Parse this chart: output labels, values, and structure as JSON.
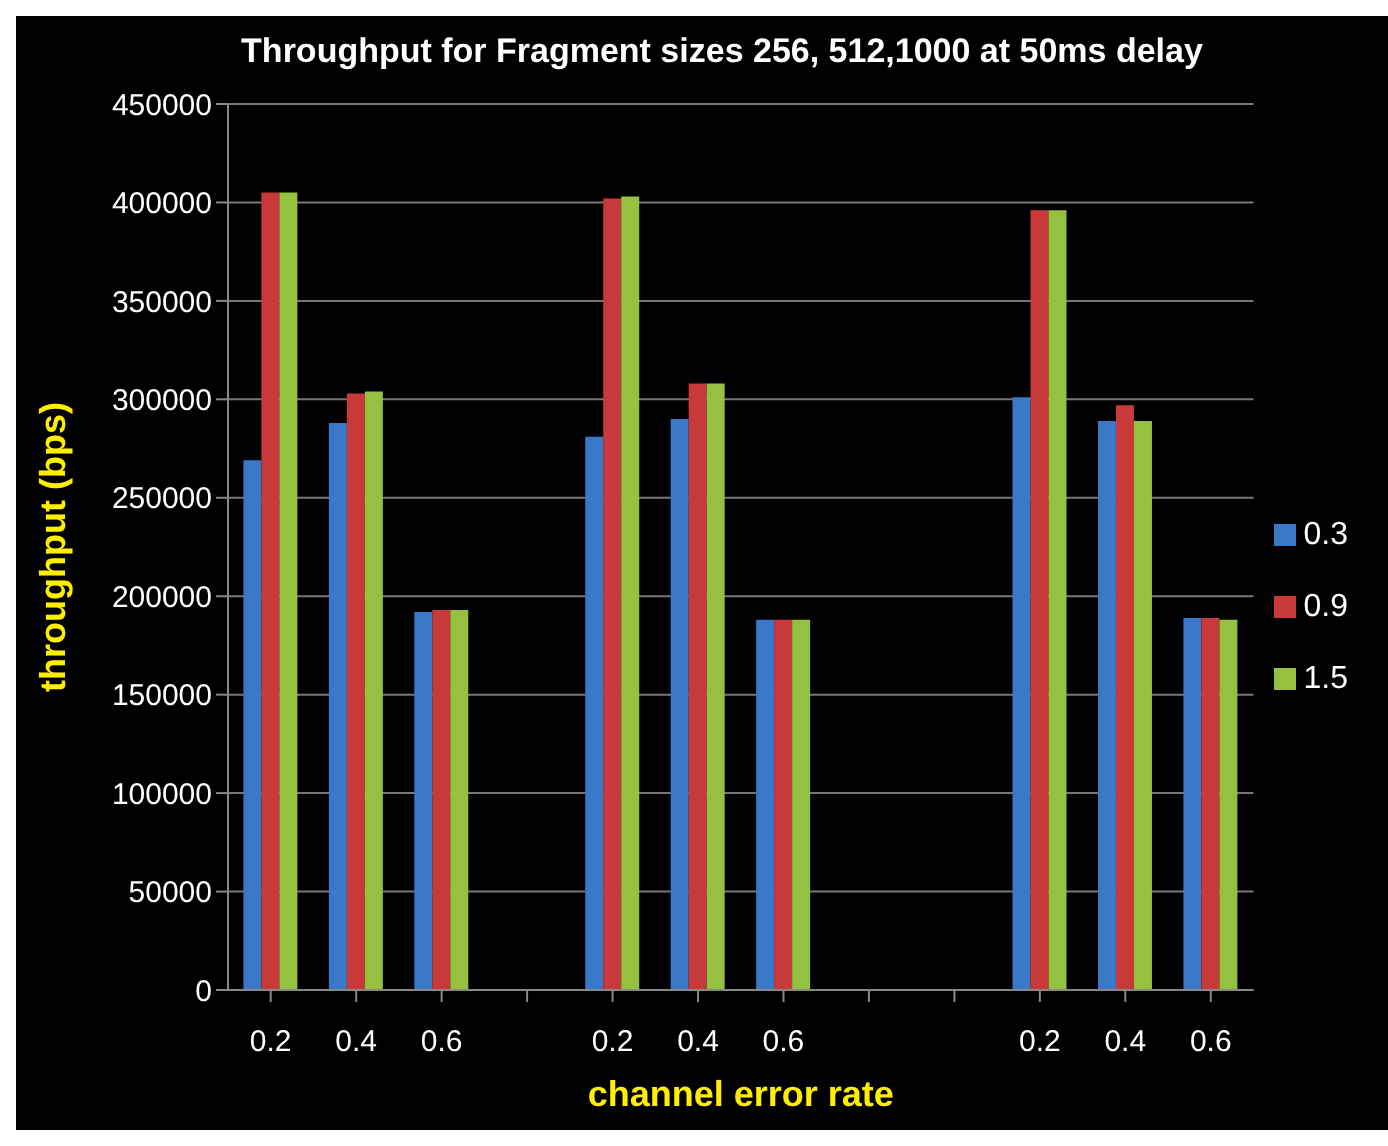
{
  "chart_data": {
    "type": "bar",
    "title": "Throughput  for Fragment sizes 256, 512,1000  at 50ms delay",
    "xlabel": "channel error rate",
    "ylabel": "throughput  (bps)",
    "categories": [
      "0.2",
      "0.4",
      "0.6",
      null,
      "0.2",
      "0.4",
      "0.6",
      null,
      null,
      "0.2",
      "0.4",
      "0.6"
    ],
    "series": [
      {
        "name": "0.3",
        "color": "#3a78c9",
        "values": [
          269000,
          288000,
          192000,
          null,
          281000,
          290000,
          188000,
          null,
          null,
          301000,
          289000,
          189000
        ]
      },
      {
        "name": "0.9",
        "color": "#c83a3a",
        "values": [
          405000,
          303000,
          193000,
          null,
          402000,
          308000,
          188000,
          null,
          null,
          396000,
          297000,
          189000
        ]
      },
      {
        "name": "1.5",
        "color": "#96c040",
        "values": [
          405000,
          304000,
          193000,
          null,
          403000,
          308000,
          188000,
          null,
          null,
          396000,
          289000,
          188000
        ]
      }
    ],
    "ylim": [
      0,
      450000
    ],
    "yticks": [
      0,
      50000,
      100000,
      150000,
      200000,
      250000,
      300000,
      350000,
      400000,
      450000
    ],
    "grid": "y",
    "legend": "right"
  }
}
